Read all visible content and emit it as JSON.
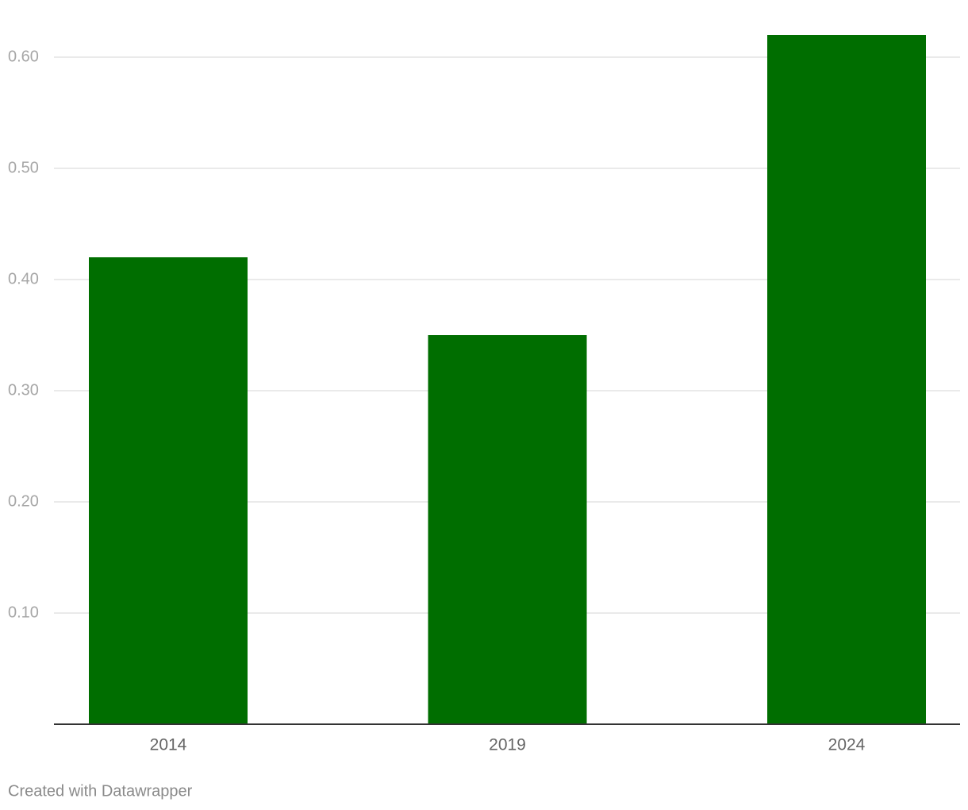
{
  "chart_data": {
    "type": "bar",
    "categories": [
      "2014",
      "2019",
      "2024"
    ],
    "values": [
      0.42,
      0.35,
      0.62
    ],
    "color": "#006e00",
    "ylim": [
      0,
      0.62
    ],
    "yticks": [
      {
        "value": 0.1,
        "label": "0.10"
      },
      {
        "value": 0.2,
        "label": "0.20"
      },
      {
        "value": 0.3,
        "label": "0.30"
      },
      {
        "value": 0.4,
        "label": "0.40"
      },
      {
        "value": 0.5,
        "label": "0.50"
      },
      {
        "value": 0.6,
        "label": "0.60"
      }
    ],
    "grid": true,
    "credit": "Created with Datawrapper"
  }
}
